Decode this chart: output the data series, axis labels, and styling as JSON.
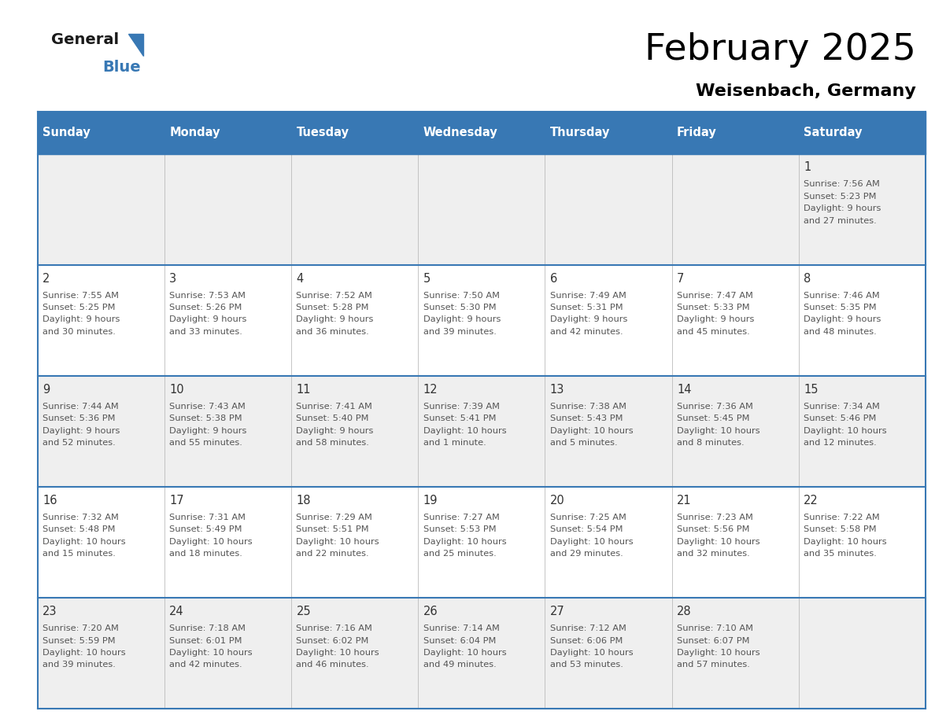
{
  "title": "February 2025",
  "subtitle": "Weisenbach, Germany",
  "header_color": "#3878b4",
  "header_text_color": "#ffffff",
  "day_names": [
    "Sunday",
    "Monday",
    "Tuesday",
    "Wednesday",
    "Thursday",
    "Friday",
    "Saturday"
  ],
  "cell_bg_even": "#efefef",
  "cell_bg_odd": "#ffffff",
  "border_color": "#3878b4",
  "num_color": "#333333",
  "text_color": "#555555",
  "calendar": [
    [
      null,
      null,
      null,
      null,
      null,
      null,
      {
        "day": 1,
        "sunrise": "7:56 AM",
        "sunset": "5:23 PM",
        "daylight": "9 hours",
        "daylight2": "and 27 minutes."
      }
    ],
    [
      {
        "day": 2,
        "sunrise": "7:55 AM",
        "sunset": "5:25 PM",
        "daylight": "9 hours",
        "daylight2": "and 30 minutes."
      },
      {
        "day": 3,
        "sunrise": "7:53 AM",
        "sunset": "5:26 PM",
        "daylight": "9 hours",
        "daylight2": "and 33 minutes."
      },
      {
        "day": 4,
        "sunrise": "7:52 AM",
        "sunset": "5:28 PM",
        "daylight": "9 hours",
        "daylight2": "and 36 minutes."
      },
      {
        "day": 5,
        "sunrise": "7:50 AM",
        "sunset": "5:30 PM",
        "daylight": "9 hours",
        "daylight2": "and 39 minutes."
      },
      {
        "day": 6,
        "sunrise": "7:49 AM",
        "sunset": "5:31 PM",
        "daylight": "9 hours",
        "daylight2": "and 42 minutes."
      },
      {
        "day": 7,
        "sunrise": "7:47 AM",
        "sunset": "5:33 PM",
        "daylight": "9 hours",
        "daylight2": "and 45 minutes."
      },
      {
        "day": 8,
        "sunrise": "7:46 AM",
        "sunset": "5:35 PM",
        "daylight": "9 hours",
        "daylight2": "and 48 minutes."
      }
    ],
    [
      {
        "day": 9,
        "sunrise": "7:44 AM",
        "sunset": "5:36 PM",
        "daylight": "9 hours",
        "daylight2": "and 52 minutes."
      },
      {
        "day": 10,
        "sunrise": "7:43 AM",
        "sunset": "5:38 PM",
        "daylight": "9 hours",
        "daylight2": "and 55 minutes."
      },
      {
        "day": 11,
        "sunrise": "7:41 AM",
        "sunset": "5:40 PM",
        "daylight": "9 hours",
        "daylight2": "and 58 minutes."
      },
      {
        "day": 12,
        "sunrise": "7:39 AM",
        "sunset": "5:41 PM",
        "daylight": "10 hours",
        "daylight2": "and 1 minute."
      },
      {
        "day": 13,
        "sunrise": "7:38 AM",
        "sunset": "5:43 PM",
        "daylight": "10 hours",
        "daylight2": "and 5 minutes."
      },
      {
        "day": 14,
        "sunrise": "7:36 AM",
        "sunset": "5:45 PM",
        "daylight": "10 hours",
        "daylight2": "and 8 minutes."
      },
      {
        "day": 15,
        "sunrise": "7:34 AM",
        "sunset": "5:46 PM",
        "daylight": "10 hours",
        "daylight2": "and 12 minutes."
      }
    ],
    [
      {
        "day": 16,
        "sunrise": "7:32 AM",
        "sunset": "5:48 PM",
        "daylight": "10 hours",
        "daylight2": "and 15 minutes."
      },
      {
        "day": 17,
        "sunrise": "7:31 AM",
        "sunset": "5:49 PM",
        "daylight": "10 hours",
        "daylight2": "and 18 minutes."
      },
      {
        "day": 18,
        "sunrise": "7:29 AM",
        "sunset": "5:51 PM",
        "daylight": "10 hours",
        "daylight2": "and 22 minutes."
      },
      {
        "day": 19,
        "sunrise": "7:27 AM",
        "sunset": "5:53 PM",
        "daylight": "10 hours",
        "daylight2": "and 25 minutes."
      },
      {
        "day": 20,
        "sunrise": "7:25 AM",
        "sunset": "5:54 PM",
        "daylight": "10 hours",
        "daylight2": "and 29 minutes."
      },
      {
        "day": 21,
        "sunrise": "7:23 AM",
        "sunset": "5:56 PM",
        "daylight": "10 hours",
        "daylight2": "and 32 minutes."
      },
      {
        "day": 22,
        "sunrise": "7:22 AM",
        "sunset": "5:58 PM",
        "daylight": "10 hours",
        "daylight2": "and 35 minutes."
      }
    ],
    [
      {
        "day": 23,
        "sunrise": "7:20 AM",
        "sunset": "5:59 PM",
        "daylight": "10 hours",
        "daylight2": "and 39 minutes."
      },
      {
        "day": 24,
        "sunrise": "7:18 AM",
        "sunset": "6:01 PM",
        "daylight": "10 hours",
        "daylight2": "and 42 minutes."
      },
      {
        "day": 25,
        "sunrise": "7:16 AM",
        "sunset": "6:02 PM",
        "daylight": "10 hours",
        "daylight2": "and 46 minutes."
      },
      {
        "day": 26,
        "sunrise": "7:14 AM",
        "sunset": "6:04 PM",
        "daylight": "10 hours",
        "daylight2": "and 49 minutes."
      },
      {
        "day": 27,
        "sunrise": "7:12 AM",
        "sunset": "6:06 PM",
        "daylight": "10 hours",
        "daylight2": "and 53 minutes."
      },
      {
        "day": 28,
        "sunrise": "7:10 AM",
        "sunset": "6:07 PM",
        "daylight": "10 hours",
        "daylight2": "and 57 minutes."
      },
      null
    ]
  ]
}
